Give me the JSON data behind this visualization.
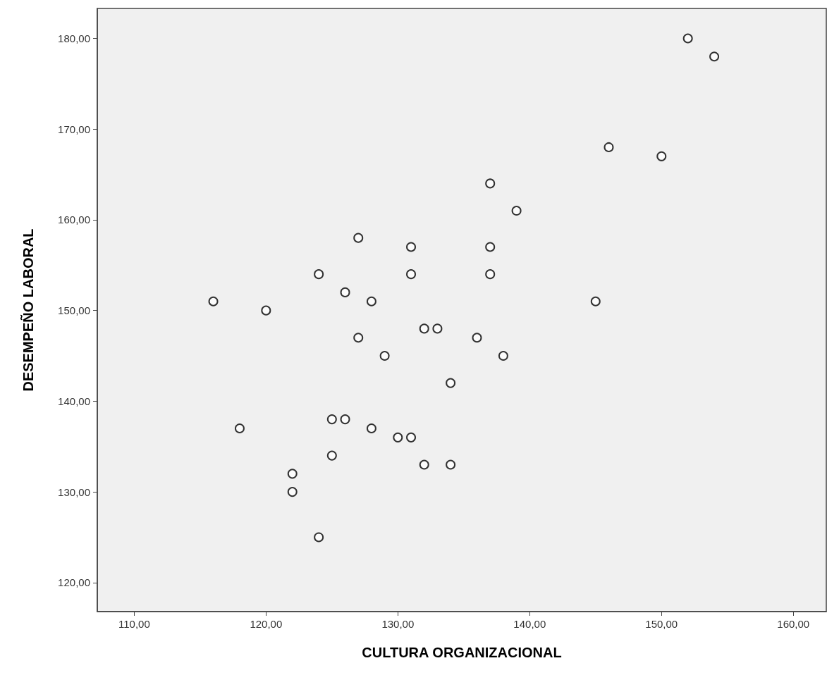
{
  "chart_data": {
    "type": "scatter",
    "xlabel": "CULTURA ORGANIZACIONAL",
    "ylabel": "DESEMPEÑO LABORAL",
    "x": [
      152,
      154,
      146,
      150,
      137,
      139,
      127,
      131,
      137,
      124,
      131,
      137,
      126,
      116,
      128,
      145,
      120,
      132,
      133,
      127,
      136,
      129,
      138,
      134,
      118,
      125,
      126,
      128,
      130,
      131,
      125,
      132,
      134,
      122,
      122,
      124
    ],
    "values": [
      180,
      178,
      168,
      167,
      164,
      161,
      158,
      157,
      157,
      154,
      154,
      154,
      152,
      151,
      151,
      151,
      150,
      148,
      148,
      147,
      147,
      145,
      145,
      142,
      137,
      138,
      138,
      137,
      136,
      136,
      134,
      133,
      133,
      132,
      130,
      125
    ],
    "color": "#000000",
    "marker": "circle",
    "grid": false,
    "xlim": [
      107.2,
      162.5
    ],
    "xticks": [
      {
        "value": 110,
        "label": "110,00"
      },
      {
        "value": 120,
        "label": "120,00"
      },
      {
        "value": 130,
        "label": "130,00"
      },
      {
        "value": 140,
        "label": "140,00"
      },
      {
        "value": 150,
        "label": "150,00"
      },
      {
        "value": 160,
        "label": "160,00"
      }
    ],
    "ylim": [
      116.8,
      183.3
    ],
    "yticks": [
      {
        "value": 120,
        "label": "120,00"
      },
      {
        "value": 130,
        "label": "130,00"
      },
      {
        "value": 140,
        "label": "140,00"
      },
      {
        "value": 150,
        "label": "150,00"
      },
      {
        "value": 160,
        "label": "160,00"
      },
      {
        "value": 170,
        "label": "170,00"
      },
      {
        "value": 180,
        "label": "180,00"
      }
    ]
  }
}
